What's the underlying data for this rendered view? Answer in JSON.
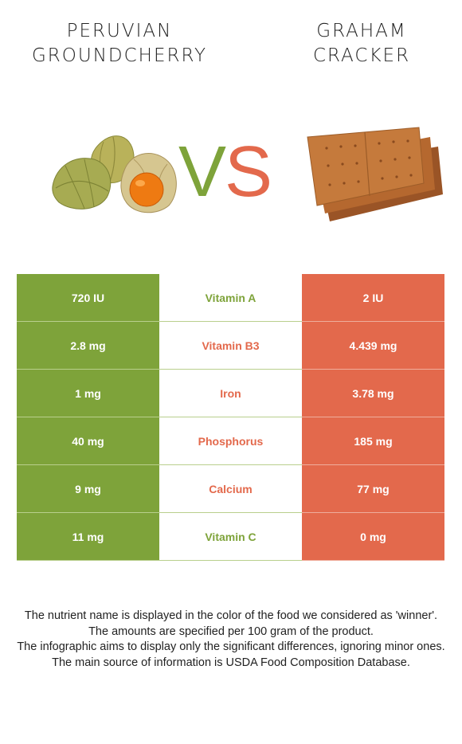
{
  "left_food": {
    "title_lines": [
      "PERUVIAN",
      "GROUNDCHERRY"
    ],
    "color": "#7ea33a"
  },
  "right_food": {
    "title_lines": [
      "GRAHAM",
      "CRACKER"
    ],
    "color": "#e3694c"
  },
  "vs": {
    "v": "V",
    "s": "S"
  },
  "rows": [
    {
      "nutrient": "Vitamin A",
      "left": "720 IU",
      "right": "2 IU",
      "winner": "left"
    },
    {
      "nutrient": "Vitamin B3",
      "left": "2.8 mg",
      "right": "4.439 mg",
      "winner": "right"
    },
    {
      "nutrient": "Iron",
      "left": "1 mg",
      "right": "3.78 mg",
      "winner": "right"
    },
    {
      "nutrient": "Phosphorus",
      "left": "40 mg",
      "right": "185 mg",
      "winner": "right"
    },
    {
      "nutrient": "Calcium",
      "left": "9 mg",
      "right": "77 mg",
      "winner": "right"
    },
    {
      "nutrient": "Vitamin C",
      "left": "11 mg",
      "right": "0 mg",
      "winner": "left"
    }
  ],
  "footnote": [
    "The nutrient name is displayed in the color of the food we considered as 'winner'.",
    "The amounts are specified per 100 gram of the product.",
    "The infographic aims to display only the significant differences, ignoring minor ones.",
    "The main source of information is USDA Food Composition Database."
  ]
}
